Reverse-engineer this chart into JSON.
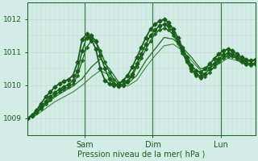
{
  "xlabel": "Pression niveau de la mer( hPa )",
  "ylim": [
    1008.5,
    1012.5
  ],
  "yticks": [
    1009,
    1010,
    1011,
    1012
  ],
  "bg_color": "#d4ece6",
  "grid_color": "#b8d8d0",
  "line_color_dark": "#1a5c1a",
  "x_ticks_labels": [
    "Sam",
    "Dim",
    "Lun"
  ],
  "x_ticks_pos": [
    0.25,
    0.55,
    0.85
  ],
  "vline_color": "#2d7a2d",
  "series": [
    {
      "x": [
        0.0,
        0.02,
        0.04,
        0.06,
        0.08,
        0.1,
        0.12,
        0.14,
        0.16,
        0.18,
        0.2,
        0.22,
        0.24,
        0.26,
        0.28,
        0.3,
        0.32,
        0.34,
        0.36,
        0.38,
        0.4,
        0.42,
        0.44,
        0.46,
        0.48,
        0.5,
        0.52,
        0.54,
        0.56,
        0.58,
        0.6,
        0.62,
        0.64,
        0.66,
        0.68,
        0.7,
        0.72,
        0.74,
        0.76,
        0.78,
        0.8,
        0.82,
        0.84,
        0.86,
        0.88,
        0.9,
        0.92,
        0.94,
        0.96,
        0.98,
        1.0
      ],
      "y": [
        1009.0,
        1009.1,
        1009.25,
        1009.45,
        1009.65,
        1009.8,
        1009.95,
        1010.05,
        1010.12,
        1010.18,
        1010.3,
        1010.7,
        1011.4,
        1011.55,
        1011.4,
        1011.1,
        1010.5,
        1010.15,
        1010.05,
        1010.0,
        1010.05,
        1010.15,
        1010.3,
        1010.55,
        1010.85,
        1011.15,
        1011.45,
        1011.7,
        1011.85,
        1011.95,
        1012.0,
        1011.9,
        1011.7,
        1011.45,
        1011.15,
        1010.85,
        1010.6,
        1010.45,
        1010.4,
        1010.5,
        1010.65,
        1010.8,
        1010.95,
        1011.05,
        1011.1,
        1011.05,
        1010.95,
        1010.85,
        1010.78,
        1010.75,
        1010.78
      ],
      "color": "#1a5c1a",
      "lw": 1.3,
      "marker": true,
      "ms": 2.5,
      "zorder": 5
    },
    {
      "x": [
        0.0,
        0.02,
        0.04,
        0.06,
        0.08,
        0.1,
        0.12,
        0.14,
        0.16,
        0.18,
        0.2,
        0.22,
        0.24,
        0.26,
        0.28,
        0.3,
        0.32,
        0.34,
        0.36,
        0.38,
        0.4,
        0.42,
        0.44,
        0.46,
        0.48,
        0.5,
        0.52,
        0.54,
        0.56,
        0.58,
        0.6,
        0.62,
        0.64,
        0.66,
        0.68,
        0.7,
        0.72,
        0.74,
        0.76,
        0.78,
        0.8,
        0.82,
        0.84,
        0.86,
        0.88,
        0.9,
        0.92,
        0.94,
        0.96,
        0.98,
        1.0
      ],
      "y": [
        1009.0,
        1009.08,
        1009.2,
        1009.35,
        1009.5,
        1009.65,
        1009.78,
        1009.88,
        1009.96,
        1010.02,
        1010.15,
        1010.45,
        1011.05,
        1011.45,
        1011.5,
        1011.35,
        1010.9,
        1010.5,
        1010.2,
        1010.05,
        1009.98,
        1010.0,
        1010.12,
        1010.35,
        1010.65,
        1010.95,
        1011.25,
        1011.5,
        1011.68,
        1011.8,
        1011.85,
        1011.8,
        1011.6,
        1011.35,
        1011.05,
        1010.75,
        1010.5,
        1010.35,
        1010.28,
        1010.35,
        1010.5,
        1010.65,
        1010.8,
        1010.92,
        1010.98,
        1010.95,
        1010.85,
        1010.75,
        1010.68,
        1010.65,
        1010.68
      ],
      "color": "#1a5c1a",
      "lw": 1.1,
      "marker": true,
      "ms": 2.5,
      "zorder": 4
    },
    {
      "x": [
        0.0,
        0.02,
        0.04,
        0.06,
        0.08,
        0.1,
        0.12,
        0.14,
        0.16,
        0.18,
        0.2,
        0.22,
        0.24,
        0.26,
        0.28,
        0.3,
        0.32,
        0.34,
        0.36,
        0.38,
        0.4,
        0.42,
        0.44,
        0.46,
        0.48,
        0.5,
        0.52,
        0.54,
        0.56,
        0.58,
        0.6,
        0.62,
        0.64,
        0.66,
        0.68,
        0.7,
        0.72,
        0.74,
        0.76,
        0.78,
        0.8,
        0.82,
        0.84,
        0.86,
        0.88,
        0.9,
        0.92,
        0.94,
        0.96,
        0.98,
        1.0
      ],
      "y": [
        1009.0,
        1009.07,
        1009.18,
        1009.3,
        1009.44,
        1009.57,
        1009.7,
        1009.8,
        1009.88,
        1009.94,
        1010.05,
        1010.3,
        1010.75,
        1011.15,
        1011.35,
        1011.32,
        1011.05,
        1010.7,
        1010.4,
        1010.18,
        1010.05,
        1010.02,
        1010.1,
        1010.28,
        1010.55,
        1010.82,
        1011.1,
        1011.35,
        1011.55,
        1011.68,
        1011.72,
        1011.68,
        1011.52,
        1011.28,
        1010.98,
        1010.7,
        1010.45,
        1010.3,
        1010.22,
        1010.27,
        1010.4,
        1010.55,
        1010.7,
        1010.82,
        1010.88,
        1010.88,
        1010.8,
        1010.7,
        1010.63,
        1010.6,
        1010.63
      ],
      "color": "#1e6e1e",
      "lw": 1.0,
      "marker": true,
      "ms": 2.0,
      "zorder": 3
    },
    {
      "x": [
        0.0,
        0.04,
        0.08,
        0.12,
        0.16,
        0.2,
        0.24,
        0.28,
        0.32,
        0.36,
        0.4,
        0.44,
        0.48,
        0.52,
        0.56,
        0.6,
        0.64,
        0.68,
        0.72,
        0.76,
        0.8,
        0.84,
        0.88,
        0.92,
        0.96,
        1.0
      ],
      "y": [
        1009.0,
        1009.15,
        1009.42,
        1009.65,
        1009.82,
        1009.98,
        1010.2,
        1010.55,
        1010.8,
        1010.5,
        1010.1,
        1010.05,
        1010.3,
        1010.75,
        1011.1,
        1011.45,
        1011.4,
        1011.15,
        1010.85,
        1010.5,
        1010.55,
        1010.75,
        1010.92,
        1010.85,
        1010.72,
        1010.75
      ],
      "color": "#2a7a2a",
      "lw": 1.0,
      "marker": false,
      "ms": 0,
      "zorder": 2
    },
    {
      "x": [
        0.0,
        0.04,
        0.08,
        0.12,
        0.16,
        0.2,
        0.24,
        0.28,
        0.32,
        0.36,
        0.4,
        0.44,
        0.48,
        0.52,
        0.56,
        0.6,
        0.64,
        0.68,
        0.72,
        0.76,
        0.8,
        0.84,
        0.88,
        0.92,
        0.96,
        1.0
      ],
      "y": [
        1009.0,
        1009.1,
        1009.3,
        1009.5,
        1009.65,
        1009.8,
        1010.0,
        1010.25,
        1010.45,
        1010.3,
        1010.05,
        1009.98,
        1010.15,
        1010.55,
        1010.9,
        1011.2,
        1011.25,
        1011.05,
        1010.75,
        1010.45,
        1010.45,
        1010.65,
        1010.82,
        1010.75,
        1010.62,
        1010.65
      ],
      "color": "#3a8a3a",
      "lw": 0.8,
      "marker": false,
      "ms": 0,
      "zorder": 1
    }
  ]
}
